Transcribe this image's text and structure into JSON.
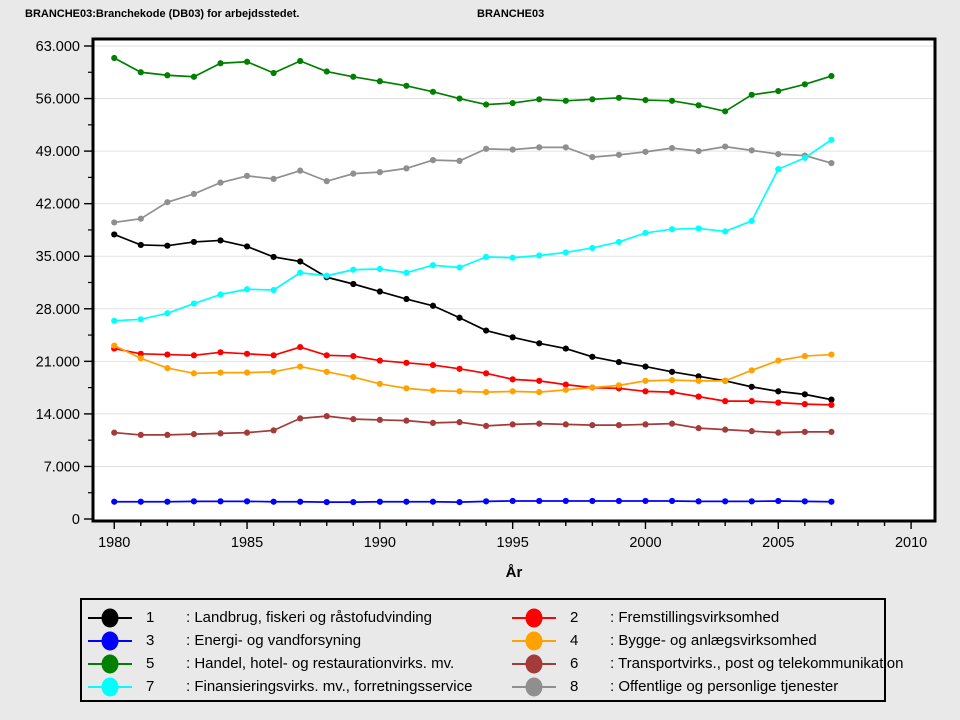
{
  "titles": {
    "left": "BRANCHE03:Branchekode (DB03) for arbejdsstedet.",
    "right": "BRANCHE03"
  },
  "chart_data": {
    "type": "line",
    "xlabel": "År",
    "ylabel": "",
    "xlim": [
      1979.2,
      2010.9
    ],
    "ylim": [
      0,
      63000
    ],
    "grid": "horizontal-major-only",
    "legend_position": "bottom-box-2col",
    "x_major_ticks": [
      1980,
      1985,
      1990,
      1995,
      2000,
      2005,
      2010
    ],
    "x_tick_labels": [
      "1980",
      "1985",
      "1990",
      "1995",
      "2000",
      "2005",
      "2010"
    ],
    "x_minor_tick_step": 1,
    "y_major_tick_step": 7000,
    "y_minor_tick_step": 3500,
    "y_tick_values": [
      0,
      7000,
      14000,
      21000,
      28000,
      35000,
      42000,
      49000,
      56000,
      63000
    ],
    "y_tick_labels": [
      "0",
      "7.000",
      "14.000",
      "21.000",
      "28.000",
      "35.000",
      "42.000",
      "49.000",
      "56.000",
      "63.000"
    ],
    "x": [
      1980,
      1981,
      1982,
      1983,
      1984,
      1985,
      1986,
      1987,
      1988,
      1989,
      1990,
      1991,
      1992,
      1993,
      1994,
      1995,
      1996,
      1997,
      1998,
      1999,
      2000,
      2001,
      2002,
      2003,
      2004,
      2005,
      2006,
      2007
    ],
    "legend_prefix": ": ",
    "legend_columns": [
      [
        "1",
        "3",
        "5",
        "7"
      ],
      [
        "2",
        "4",
        "6",
        "8"
      ]
    ],
    "series": [
      {
        "id": "1",
        "name": "Landbrug, fiskeri og råstofudvinding",
        "color": "#000000",
        "values": [
          37900,
          36500,
          36400,
          36900,
          37100,
          36300,
          34900,
          34300,
          32200,
          31300,
          30300,
          29300,
          28400,
          26800,
          25100,
          24200,
          23400,
          22700,
          21600,
          20900,
          20300,
          19600,
          19000,
          18400,
          17600,
          17000,
          16600,
          15900
        ]
      },
      {
        "id": "2",
        "name": "Fremstillingsvirksomhed",
        "color": "#ff0000",
        "values": [
          22700,
          22000,
          21900,
          21800,
          22200,
          22000,
          21800,
          22900,
          21800,
          21700,
          21100,
          20800,
          20500,
          20000,
          19400,
          18600,
          18400,
          17900,
          17500,
          17400,
          17000,
          16900,
          16300,
          15700,
          15700,
          15500,
          15300,
          15200
        ]
      },
      {
        "id": "3",
        "name": "Energi- og vandforsyning",
        "color": "#0000ff",
        "values": [
          2300,
          2300,
          2300,
          2350,
          2350,
          2350,
          2300,
          2300,
          2250,
          2250,
          2300,
          2300,
          2300,
          2250,
          2350,
          2400,
          2400,
          2400,
          2400,
          2400,
          2400,
          2400,
          2350,
          2350,
          2350,
          2400,
          2350,
          2300
        ]
      },
      {
        "id": "4",
        "name": "Bygge- og anlægsvirksomhed",
        "color": "#ffa200",
        "values": [
          23100,
          21400,
          20100,
          19400,
          19500,
          19500,
          19600,
          20300,
          19600,
          18900,
          18000,
          17400,
          17100,
          17000,
          16900,
          17000,
          16900,
          17200,
          17500,
          17800,
          18400,
          18500,
          18400,
          18400,
          19800,
          21100,
          21700,
          21900
        ]
      },
      {
        "id": "5",
        "name": "Handel, hotel- og restaurationvirks. mv.",
        "color": "#008000",
        "values": [
          61400,
          59500,
          59100,
          58900,
          60700,
          60900,
          59400,
          61000,
          59600,
          58900,
          58300,
          57700,
          56900,
          56000,
          55200,
          55400,
          55900,
          55700,
          55900,
          56100,
          55800,
          55700,
          55100,
          54300,
          56500,
          57000,
          57900,
          59000
        ]
      },
      {
        "id": "6",
        "name": "Transportvirks., post og telekommunikation",
        "color": "#a33b3b",
        "values": [
          11500,
          11200,
          11200,
          11300,
          11400,
          11500,
          11800,
          13400,
          13700,
          13300,
          13200,
          13100,
          12800,
          12900,
          12400,
          12600,
          12700,
          12600,
          12500,
          12500,
          12600,
          12700,
          12100,
          11900,
          11700,
          11500,
          11600,
          11600
        ]
      },
      {
        "id": "8",
        "name": "Offentlige og personlige tjenester",
        "color": "#8f8f8f",
        "values": [
          39500,
          40000,
          42200,
          43300,
          44800,
          45700,
          45300,
          46400,
          45000,
          46000,
          46200,
          46700,
          47800,
          47700,
          49300,
          49200,
          49500,
          49500,
          48200,
          48500,
          48900,
          49400,
          49000,
          49600,
          49100,
          48600,
          48400,
          47400
        ]
      },
      {
        "id": "7",
        "name": "Finansieringsvirks. mv., forretningsservice",
        "color": "#00ffff",
        "values": [
          26400,
          26600,
          27400,
          28700,
          29900,
          30600,
          30500,
          32800,
          32400,
          33200,
          33300,
          32800,
          33800,
          33500,
          34900,
          34800,
          35100,
          35500,
          36100,
          36900,
          38100,
          38600,
          38700,
          38300,
          39700,
          46600,
          48100,
          50500
        ]
      }
    ]
  }
}
